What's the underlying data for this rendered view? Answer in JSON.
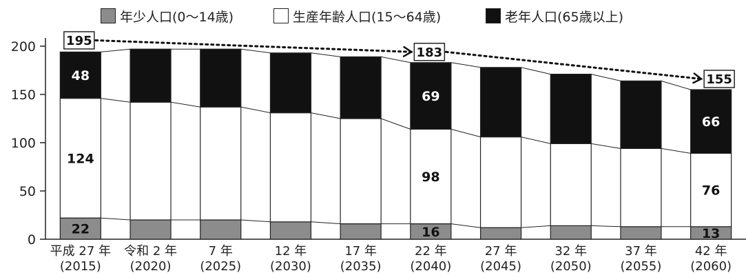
{
  "chart_data": {
    "type": "bar",
    "stacked": true,
    "categories": [
      {
        "era": "平成 27 年",
        "year": "(2015)"
      },
      {
        "era": "令和 2 年",
        "year": "(2020)"
      },
      {
        "era": "7 年",
        "year": "(2025)"
      },
      {
        "era": "12 年",
        "year": "(2030)"
      },
      {
        "era": "17 年",
        "year": "(2035)"
      },
      {
        "era": "22 年",
        "year": "(2040)"
      },
      {
        "era": "27 年",
        "year": "(2045)"
      },
      {
        "era": "32 年",
        "year": "(2050)"
      },
      {
        "era": "37 年",
        "year": "(2055)"
      },
      {
        "era": "42 年",
        "year": "(2060)"
      }
    ],
    "series": [
      {
        "name": "年少人口(0～14歳)",
        "color": "#8c8c8c",
        "values": [
          22,
          20,
          20,
          18,
          16,
          16,
          12,
          14,
          13,
          13
        ]
      },
      {
        "name": "生産年齢人口(15～64歳)",
        "color": "#ffffff",
        "values": [
          124,
          122,
          117,
          113,
          109,
          98,
          94,
          85,
          81,
          76
        ]
      },
      {
        "name": "老年人口(65歳以上)",
        "color": "#111111",
        "values": [
          48,
          55,
          60,
          62,
          64,
          69,
          72,
          72,
          70,
          66
        ]
      }
    ],
    "data_labels": [
      {
        "category_index": 0,
        "series_index": 0,
        "text": "22"
      },
      {
        "category_index": 0,
        "series_index": 1,
        "text": "124"
      },
      {
        "category_index": 0,
        "series_index": 2,
        "text": "48"
      },
      {
        "category_index": 5,
        "series_index": 0,
        "text": "16"
      },
      {
        "category_index": 5,
        "series_index": 1,
        "text": "98"
      },
      {
        "category_index": 5,
        "series_index": 2,
        "text": "69"
      },
      {
        "category_index": 9,
        "series_index": 0,
        "text": "13"
      },
      {
        "category_index": 9,
        "series_index": 1,
        "text": "76"
      },
      {
        "category_index": 9,
        "series_index": 2,
        "text": "66"
      }
    ],
    "total_callouts": [
      {
        "category_index": 0,
        "value": 195,
        "text": "195"
      },
      {
        "category_index": 5,
        "value": 183,
        "text": "183"
      },
      {
        "category_index": 9,
        "value": 155,
        "text": "155"
      }
    ],
    "ylim": [
      0,
      200
    ],
    "yticks": [
      "0",
      "50",
      "100",
      "150",
      "200"
    ],
    "legend_position": "top"
  }
}
